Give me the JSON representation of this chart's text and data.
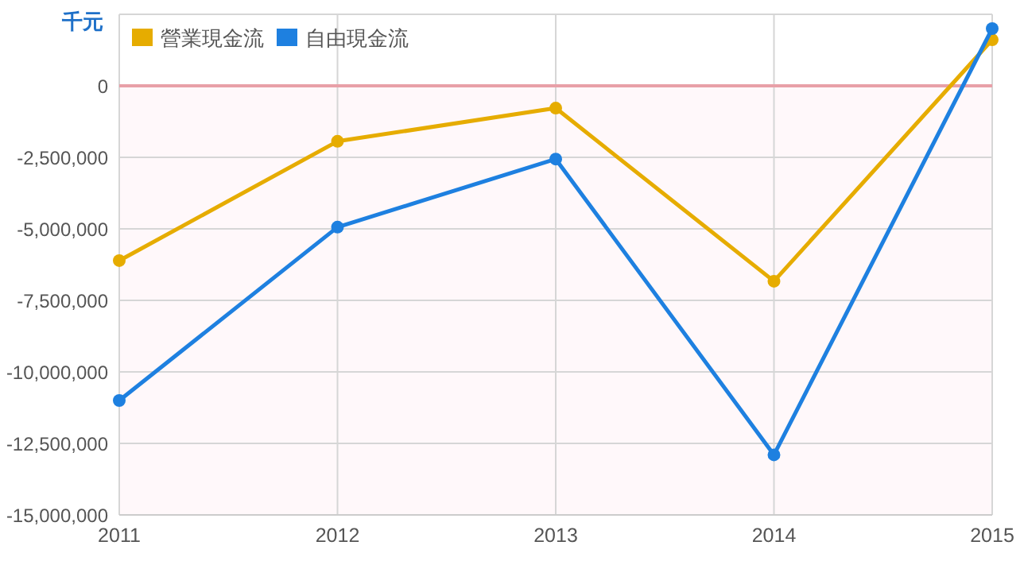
{
  "chart_data": {
    "type": "line",
    "ylabel": "千元",
    "x": [
      2011,
      2012,
      2013,
      2014,
      2015
    ],
    "xlim": [
      2011,
      2015
    ],
    "xticks": [
      2011,
      2012,
      2013,
      2014,
      2015
    ],
    "ylim": [
      -15000000,
      2500000
    ],
    "yticks": [
      {
        "value": -15000000,
        "label": "-15,000,000"
      },
      {
        "value": -12500000,
        "label": "-12,500,000"
      },
      {
        "value": -10000000,
        "label": "-10,000,000"
      },
      {
        "value": -7500000,
        "label": "-7,500,000"
      },
      {
        "value": -5000000,
        "label": "-5,000,000"
      },
      {
        "value": -2500000,
        "label": "-2,500,000"
      },
      0,
      {
        "value": 2500000,
        "label": null
      }
    ],
    "series": [
      {
        "name": "營業現金流",
        "color": "#e6ac00",
        "values": [
          -6110000,
          -1940000,
          -780000,
          -6830000,
          1610000
        ]
      },
      {
        "name": "自由現金流",
        "color": "#1e80e0",
        "values": [
          -11000000,
          -4940000,
          -2560000,
          -12900000,
          2000000
        ]
      }
    ],
    "ref_lines": [
      {
        "axis": "y",
        "value": 0,
        "color": "#e8a0a8"
      }
    ],
    "bands": [
      {
        "axis": "y",
        "from": -15000000,
        "to": 0,
        "color": "#fff8fa"
      }
    ],
    "grid": true,
    "legend": "top left",
    "marker": "circle",
    "line_style": "solid"
  }
}
